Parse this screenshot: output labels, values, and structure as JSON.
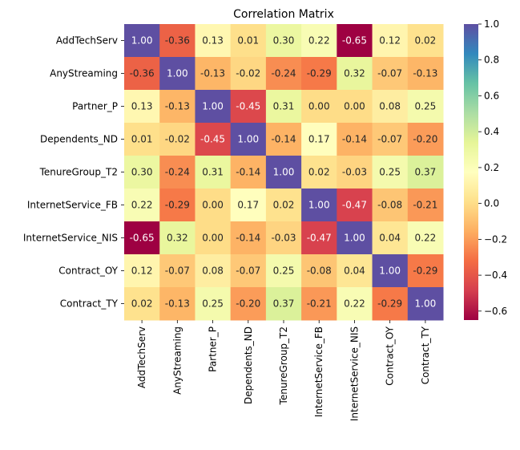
{
  "chart_data": {
    "type": "heatmap",
    "title": "Correlation Matrix",
    "xlabel": "",
    "ylabel": "",
    "labels": [
      "AddTechServ",
      "AnyStreaming",
      "Partner_P",
      "Dependents_ND",
      "TenureGroup_T2",
      "InternetService_FB",
      "InternetService_NIS",
      "Contract_OY",
      "Contract_TY"
    ],
    "matrix": [
      [
        1.0,
        -0.36,
        0.13,
        0.01,
        0.3,
        0.22,
        -0.65,
        0.12,
        0.02
      ],
      [
        -0.36,
        1.0,
        -0.13,
        -0.02,
        -0.24,
        -0.29,
        0.32,
        -0.07,
        -0.13
      ],
      [
        0.13,
        -0.13,
        1.0,
        -0.45,
        0.31,
        0.0,
        0.0,
        0.08,
        0.25
      ],
      [
        0.01,
        -0.02,
        -0.45,
        1.0,
        -0.14,
        0.17,
        -0.14,
        -0.07,
        -0.2
      ],
      [
        0.3,
        -0.24,
        0.31,
        -0.14,
        1.0,
        0.02,
        -0.03,
        0.25,
        0.37
      ],
      [
        0.22,
        -0.29,
        0.0,
        0.17,
        0.02,
        1.0,
        -0.47,
        -0.08,
        -0.21
      ],
      [
        -0.65,
        0.32,
        0.0,
        -0.14,
        -0.03,
        -0.47,
        1.0,
        0.04,
        0.22
      ],
      [
        0.12,
        -0.07,
        0.08,
        -0.07,
        0.25,
        -0.08,
        0.04,
        1.0,
        -0.29
      ],
      [
        0.02,
        -0.13,
        0.25,
        -0.2,
        0.37,
        -0.21,
        0.22,
        -0.29,
        1.0
      ]
    ],
    "value_format": "2 decimals",
    "colormap": "Spectral",
    "colorbar": {
      "vmin": -0.65,
      "vmax": 1.0,
      "ticks": [
        1.0,
        0.8,
        0.6,
        0.4,
        0.2,
        0.0,
        -0.2,
        -0.4,
        -0.6
      ],
      "tick_labels": [
        "1.0",
        "0.8",
        "0.6",
        "0.4",
        "0.2",
        "0.0",
        "−0.2",
        "−0.4",
        "−0.6"
      ]
    },
    "grid": false,
    "legend": "colorbar-right"
  }
}
